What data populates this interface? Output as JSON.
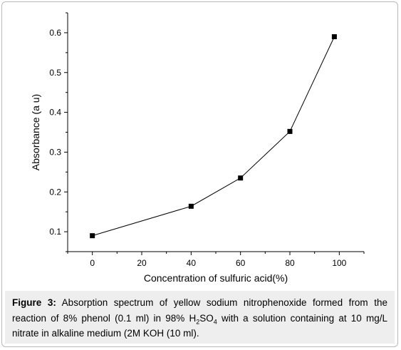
{
  "chart_data": {
    "type": "line",
    "xlabel": "Concentration of sulfuric acid(%)",
    "ylabel": "Absorbance (a u)",
    "xlim": [
      -10,
      110
    ],
    "ylim": [
      0.05,
      0.65
    ],
    "xticks": [
      0,
      20,
      40,
      60,
      80,
      100
    ],
    "xtick_labels": [
      "0",
      "20",
      "40",
      "60",
      "80",
      "100"
    ],
    "yticks": [
      0.1,
      0.2,
      0.3,
      0.4,
      0.5,
      0.6
    ],
    "ytick_labels": [
      "0.1",
      "0.2",
      "0.3",
      "0.4",
      "0.5",
      "0.6"
    ],
    "grid": false,
    "marker": "square",
    "color": "#000000",
    "series": [
      {
        "x": [
          0,
          40,
          60,
          80,
          98
        ],
        "values": [
          0.09,
          0.164,
          0.235,
          0.352,
          0.59
        ]
      }
    ]
  },
  "caption": {
    "label": "Figure 3:",
    "text_before_formula": " Absorption spectrum of yellow sodium nitrophenoxide formed from the reaction of 8% phenol (0.1 ml) in 98% ",
    "formula_h": "H",
    "formula_h_sub": "2",
    "formula_so": "SO",
    "formula_so_sub": "4",
    "text_after_formula": " with a solution containing at 10 mg/L nitrate in alkaline medium (2M KOH (10 ml)."
  }
}
